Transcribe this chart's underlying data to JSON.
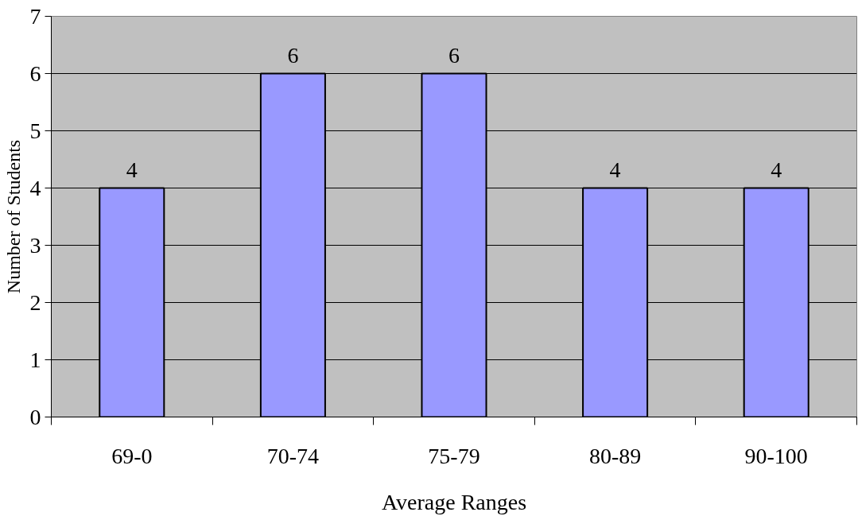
{
  "chart_data": {
    "type": "bar",
    "xlabel": "Average Ranges",
    "ylabel": "Number of Students",
    "categories": [
      "69-0",
      "70-74",
      "75-79",
      "80-89",
      "90-100"
    ],
    "values": [
      4,
      6,
      6,
      4,
      4
    ],
    "color": "#9999ff",
    "ylim": [
      0,
      7
    ],
    "yticks": [
      0,
      1,
      2,
      3,
      4,
      5,
      6,
      7
    ],
    "grid": "y",
    "data_labels": true
  }
}
